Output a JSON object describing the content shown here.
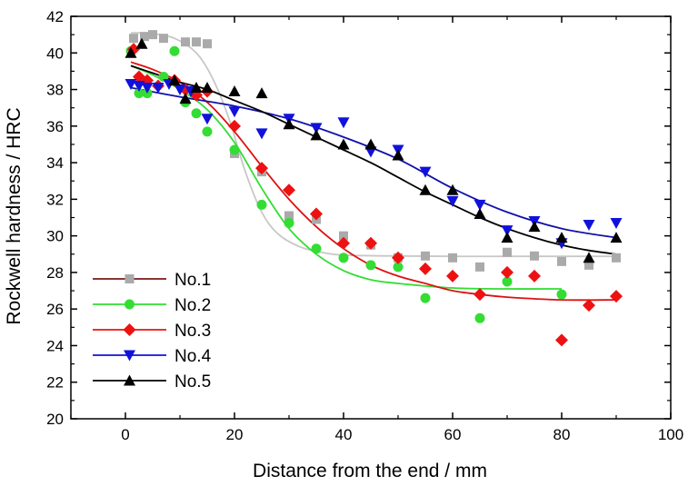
{
  "chart_data": {
    "type": "scatter",
    "title": "",
    "xlabel": "Distance from the end / mm",
    "ylabel": "Rockwell hardness / HRC",
    "xlim": [
      -10,
      100
    ],
    "ylim": [
      20,
      42
    ],
    "xticks": [
      0,
      20,
      40,
      60,
      80,
      100
    ],
    "yticks": [
      20,
      22,
      24,
      26,
      28,
      30,
      32,
      34,
      36,
      38,
      40,
      42
    ],
    "grid": false,
    "legend_position": "bottom-left",
    "series": [
      {
        "name": "No.1",
        "marker": "square",
        "color": "#aaaaaa",
        "line_color": "#7a1a1a",
        "fit_color": "#c8c8c8",
        "points": [
          [
            1.5,
            40.8
          ],
          [
            3.5,
            40.9
          ],
          [
            5,
            41.0
          ],
          [
            7,
            40.8
          ],
          [
            11,
            40.6
          ],
          [
            13,
            40.6
          ],
          [
            15,
            40.5
          ],
          [
            20,
            34.5
          ],
          [
            25,
            33.5
          ],
          [
            30,
            31.1
          ],
          [
            35,
            30.9
          ],
          [
            40,
            30.0
          ],
          [
            45,
            29.5
          ],
          [
            50,
            28.8
          ],
          [
            55,
            28.9
          ],
          [
            60,
            28.8
          ],
          [
            65,
            28.3
          ],
          [
            70,
            29.1
          ],
          [
            75,
            28.9
          ],
          [
            80,
            28.6
          ],
          [
            85,
            28.4
          ],
          [
            90,
            28.8
          ]
        ],
        "fit": [
          [
            1,
            41.1
          ],
          [
            5,
            41.05
          ],
          [
            9,
            40.8
          ],
          [
            13,
            40.0
          ],
          [
            16,
            38.6
          ],
          [
            19,
            36.4
          ],
          [
            22,
            33.5
          ],
          [
            25,
            31.3
          ],
          [
            28,
            30.1
          ],
          [
            32,
            29.4
          ],
          [
            36,
            29.1
          ],
          [
            40,
            28.95
          ],
          [
            50,
            28.9
          ],
          [
            60,
            28.88
          ],
          [
            70,
            28.88
          ],
          [
            80,
            28.88
          ],
          [
            90,
            28.88
          ]
        ]
      },
      {
        "name": "No.2",
        "marker": "circle",
        "color": "#33dd33",
        "line_color": "#33dd33",
        "fit_color": "#33dd33",
        "points": [
          [
            1,
            40.1
          ],
          [
            2.5,
            37.8
          ],
          [
            4,
            37.8
          ],
          [
            7,
            38.7
          ],
          [
            9,
            40.1
          ],
          [
            11,
            37.3
          ],
          [
            13,
            36.7
          ],
          [
            15,
            35.7
          ],
          [
            20,
            34.7
          ],
          [
            25,
            31.7
          ],
          [
            30,
            30.7
          ],
          [
            35,
            29.3
          ],
          [
            40,
            28.8
          ],
          [
            45,
            28.4
          ],
          [
            50,
            28.3
          ],
          [
            55,
            26.6
          ],
          [
            65,
            25.5
          ],
          [
            70,
            27.5
          ],
          [
            80,
            26.8
          ]
        ],
        "fit": [
          [
            1,
            39.3
          ],
          [
            5,
            38.8
          ],
          [
            10,
            38.0
          ],
          [
            15,
            36.9
          ],
          [
            20,
            35.1
          ],
          [
            25,
            32.6
          ],
          [
            30,
            30.4
          ],
          [
            35,
            29.0
          ],
          [
            40,
            28.1
          ],
          [
            45,
            27.6
          ],
          [
            50,
            27.4
          ],
          [
            60,
            27.15
          ],
          [
            70,
            27.1
          ],
          [
            80,
            27.1
          ]
        ]
      },
      {
        "name": "No.3",
        "marker": "diamond",
        "color": "#ee1111",
        "line_color": "#ee1111",
        "fit_color": "#dd1111",
        "points": [
          [
            1.5,
            40.2
          ],
          [
            2.5,
            38.7
          ],
          [
            4,
            38.5
          ],
          [
            6,
            38.2
          ],
          [
            9,
            38.5
          ],
          [
            11,
            38.0
          ],
          [
            13,
            37.7
          ],
          [
            15,
            37.9
          ],
          [
            20,
            36.0
          ],
          [
            25,
            33.7
          ],
          [
            30,
            32.5
          ],
          [
            35,
            31.2
          ],
          [
            40,
            29.6
          ],
          [
            45,
            29.6
          ],
          [
            50,
            28.8
          ],
          [
            55,
            28.2
          ],
          [
            60,
            27.8
          ],
          [
            65,
            26.8
          ],
          [
            70,
            28.0
          ],
          [
            75,
            27.8
          ],
          [
            80,
            24.3
          ],
          [
            85,
            26.2
          ],
          [
            90,
            26.7
          ]
        ],
        "fit": [
          [
            1,
            39.5
          ],
          [
            5,
            39.1
          ],
          [
            10,
            38.4
          ],
          [
            15,
            37.3
          ],
          [
            20,
            35.7
          ],
          [
            25,
            33.8
          ],
          [
            30,
            32.0
          ],
          [
            35,
            30.5
          ],
          [
            40,
            29.3
          ],
          [
            45,
            28.4
          ],
          [
            50,
            27.8
          ],
          [
            55,
            27.4
          ],
          [
            60,
            27.0
          ],
          [
            65,
            26.8
          ],
          [
            70,
            26.65
          ],
          [
            80,
            26.5
          ],
          [
            90,
            26.5
          ]
        ]
      },
      {
        "name": "No.4",
        "marker": "triangle-down",
        "color": "#1111dd",
        "line_color": "#1111dd",
        "fit_color": "#1111aa",
        "points": [
          [
            1,
            38.3
          ],
          [
            2.5,
            38.2
          ],
          [
            4,
            38.1
          ],
          [
            6,
            38.1
          ],
          [
            8,
            38.3
          ],
          [
            10,
            38.0
          ],
          [
            12,
            37.9
          ],
          [
            15,
            36.4
          ],
          [
            20,
            36.8
          ],
          [
            25,
            35.6
          ],
          [
            30,
            36.4
          ],
          [
            35,
            35.9
          ],
          [
            40,
            36.2
          ],
          [
            45,
            34.6
          ],
          [
            50,
            34.7
          ],
          [
            55,
            33.5
          ],
          [
            60,
            31.9
          ],
          [
            65,
            31.7
          ],
          [
            70,
            30.3
          ],
          [
            75,
            30.8
          ],
          [
            80,
            29.6
          ],
          [
            85,
            30.6
          ],
          [
            90,
            30.7
          ]
        ],
        "fit": [
          [
            1,
            38.1
          ],
          [
            10,
            37.6
          ],
          [
            20,
            37.1
          ],
          [
            30,
            36.4
          ],
          [
            40,
            35.4
          ],
          [
            50,
            34.2
          ],
          [
            60,
            32.6
          ],
          [
            70,
            31.3
          ],
          [
            80,
            30.4
          ],
          [
            90,
            29.9
          ]
        ]
      },
      {
        "name": "No.5",
        "marker": "triangle-up",
        "color": "#000000",
        "line_color": "#000000",
        "fit_color": "#000000",
        "points": [
          [
            1,
            40.0
          ],
          [
            3,
            40.5
          ],
          [
            9,
            38.5
          ],
          [
            11,
            37.5
          ],
          [
            13,
            38.1
          ],
          [
            15,
            38.1
          ],
          [
            20,
            37.9
          ],
          [
            25,
            37.8
          ],
          [
            30,
            36.1
          ],
          [
            35,
            35.5
          ],
          [
            40,
            35.0
          ],
          [
            45,
            35.0
          ],
          [
            50,
            34.4
          ],
          [
            55,
            32.5
          ],
          [
            60,
            32.5
          ],
          [
            65,
            31.2
          ],
          [
            70,
            29.9
          ],
          [
            75,
            30.5
          ],
          [
            80,
            29.9
          ],
          [
            85,
            28.8
          ],
          [
            90,
            29.9
          ]
        ],
        "fit": [
          [
            1,
            39.3
          ],
          [
            5,
            38.9
          ],
          [
            10,
            38.4
          ],
          [
            15,
            38.0
          ],
          [
            20,
            37.4
          ],
          [
            25,
            36.8
          ],
          [
            30,
            36.1
          ],
          [
            35,
            35.4
          ],
          [
            40,
            34.7
          ],
          [
            45,
            34.0
          ],
          [
            50,
            33.2
          ],
          [
            55,
            32.4
          ],
          [
            60,
            31.7
          ],
          [
            65,
            31.0
          ],
          [
            70,
            30.4
          ],
          [
            75,
            29.9
          ],
          [
            80,
            29.5
          ],
          [
            85,
            29.2
          ],
          [
            90,
            29.0
          ]
        ]
      }
    ]
  }
}
